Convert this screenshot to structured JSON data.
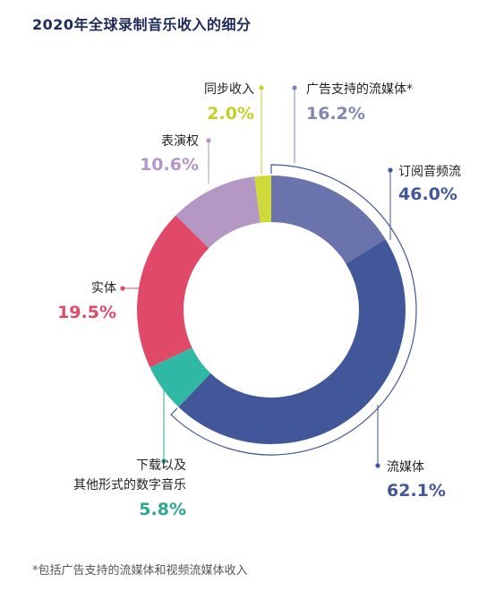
{
  "title": "2020年全球录制音乐收入的细分",
  "footnote": "*包括广告支持的流媒体和视频流媒体收入",
  "chart_data": {
    "type": "pie",
    "title": "2020年全球录制音乐收入的细分",
    "unit": "%",
    "slices": [
      {
        "key": "ad",
        "name": "广告支持的流媒体*",
        "value": 16.2,
        "label": "16.2%",
        "color": "#6b73ad",
        "label_color": "#7f86b9"
      },
      {
        "key": "sub",
        "name": "订阅音频流",
        "value": 46.0,
        "label": "46.0%",
        "color": "#42579a",
        "label_color": "#42579a"
      },
      {
        "key": "dl",
        "name": "下载以及其他形式的数字音乐",
        "value": 5.8,
        "label": "5.8%",
        "color": "#2fb8a3",
        "label_color": "#2aa892"
      },
      {
        "key": "phys",
        "name": "实体",
        "value": 19.5,
        "label": "19.5%",
        "color": "#e04a68",
        "label_color": "#e04a68"
      },
      {
        "key": "perf",
        "name": "表演权",
        "value": 10.6,
        "label": "10.6%",
        "color": "#b497c3",
        "label_color": "#b497c3"
      },
      {
        "key": "sync",
        "name": "同步收入",
        "value": 2.0,
        "label": "2.0%",
        "color": "#cfd93a",
        "label_color": "#c6cf2a"
      }
    ],
    "group": {
      "name": "流媒体",
      "value": 62.1,
      "label": "62.1%",
      "color": "#42579a"
    }
  }
}
